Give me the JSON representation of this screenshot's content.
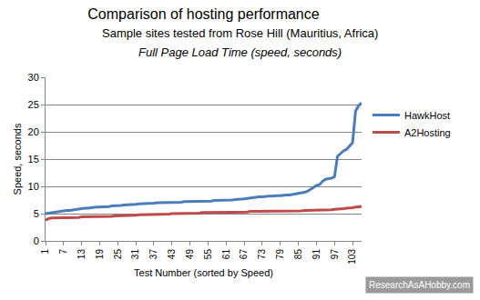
{
  "chart_data": {
    "type": "line",
    "title": "Comparison of hosting performance",
    "subtitle": [
      "Sample sites tested from Rose Hill (Mauritius, Africa)",
      "Full Page Load Time (speed, seconds)"
    ],
    "x_label": "Test Number (sorted by Speed)",
    "y_label": "Speed, seconds",
    "annotations": [
      {
        "text": "ResearchAsAHobby.com"
      }
    ],
    "x": [
      1,
      2,
      3,
      4,
      5,
      6,
      7,
      8,
      9,
      10,
      11,
      12,
      13,
      14,
      15,
      16,
      17,
      18,
      19,
      20,
      21,
      22,
      23,
      24,
      25,
      26,
      27,
      28,
      29,
      30,
      31,
      32,
      33,
      34,
      35,
      36,
      37,
      38,
      39,
      40,
      41,
      42,
      43,
      44,
      45,
      46,
      47,
      48,
      49,
      50,
      51,
      52,
      53,
      54,
      55,
      56,
      57,
      58,
      59,
      60,
      61,
      62,
      63,
      64,
      65,
      66,
      67,
      68,
      69,
      70,
      71,
      72,
      73,
      74,
      75,
      76,
      77,
      78,
      79,
      80,
      81,
      82,
      83,
      84,
      85,
      86,
      87,
      88,
      89,
      90,
      91,
      92,
      93,
      94,
      95,
      96,
      97,
      98,
      99,
      100,
      101,
      102,
      103,
      104,
      105,
      106
    ],
    "series": [
      {
        "name": "HawkHost",
        "color": "#4a7ebb",
        "values": [
          5.0,
          5.1,
          5.2,
          5.2,
          5.3,
          5.4,
          5.5,
          5.6,
          5.6,
          5.7,
          5.8,
          5.9,
          5.9,
          6.0,
          6.0,
          6.1,
          6.1,
          6.2,
          6.2,
          6.2,
          6.3,
          6.3,
          6.4,
          6.4,
          6.5,
          6.5,
          6.6,
          6.6,
          6.7,
          6.7,
          6.7,
          6.8,
          6.8,
          6.8,
          6.9,
          6.9,
          6.9,
          7.0,
          7.0,
          7.0,
          7.0,
          7.1,
          7.1,
          7.1,
          7.1,
          7.1,
          7.2,
          7.2,
          7.2,
          7.2,
          7.2,
          7.3,
          7.3,
          7.3,
          7.3,
          7.3,
          7.4,
          7.4,
          7.4,
          7.4,
          7.5,
          7.5,
          7.5,
          7.6,
          7.6,
          7.7,
          7.7,
          7.8,
          7.9,
          8.0,
          8.0,
          8.1,
          8.1,
          8.2,
          8.2,
          8.2,
          8.3,
          8.3,
          8.3,
          8.4,
          8.4,
          8.4,
          8.5,
          8.5,
          8.6,
          8.7,
          8.9,
          9.1,
          9.4,
          9.8,
          10.2,
          10.3,
          10.9,
          11.3,
          11.4,
          11.5,
          11.8,
          15.5,
          16.0,
          16.5,
          16.8,
          17.5,
          18.0,
          23.8,
          24.8,
          25.3
        ]
      },
      {
        "name": "A2Hosting",
        "color": "#be4b48",
        "values": [
          3.8,
          4.1,
          4.2,
          4.2,
          4.2,
          4.3,
          4.3,
          4.3,
          4.3,
          4.3,
          4.3,
          4.3,
          4.4,
          4.4,
          4.4,
          4.4,
          4.4,
          4.4,
          4.4,
          4.5,
          4.5,
          4.5,
          4.5,
          4.6,
          4.6,
          4.6,
          4.6,
          4.7,
          4.7,
          4.7,
          4.7,
          4.8,
          4.8,
          4.8,
          4.8,
          4.8,
          4.9,
          4.9,
          4.9,
          4.9,
          4.9,
          4.9,
          5.0,
          5.0,
          5.0,
          5.0,
          5.0,
          5.1,
          5.1,
          5.1,
          5.1,
          5.1,
          5.2,
          5.2,
          5.2,
          5.2,
          5.2,
          5.2,
          5.2,
          5.3,
          5.3,
          5.3,
          5.3,
          5.3,
          5.3,
          5.3,
          5.3,
          5.3,
          5.4,
          5.4,
          5.4,
          5.4,
          5.4,
          5.4,
          5.4,
          5.4,
          5.4,
          5.5,
          5.5,
          5.5,
          5.5,
          5.5,
          5.5,
          5.5,
          5.5,
          5.5,
          5.6,
          5.6,
          5.6,
          5.6,
          5.6,
          5.6,
          5.7,
          5.7,
          5.7,
          5.7,
          5.8,
          5.8,
          5.8,
          5.9,
          6.0,
          6.0,
          6.1,
          6.2,
          6.3,
          6.3
        ]
      }
    ],
    "xlim": [
      1,
      106
    ],
    "xticks": [
      1,
      7,
      13,
      19,
      25,
      31,
      37,
      43,
      49,
      55,
      61,
      67,
      73,
      79,
      85,
      91,
      97,
      103
    ],
    "ylim": [
      0,
      30
    ],
    "yticks": [
      0,
      5,
      10,
      15,
      20,
      25,
      30
    ],
    "grid": true,
    "legend": "right"
  }
}
